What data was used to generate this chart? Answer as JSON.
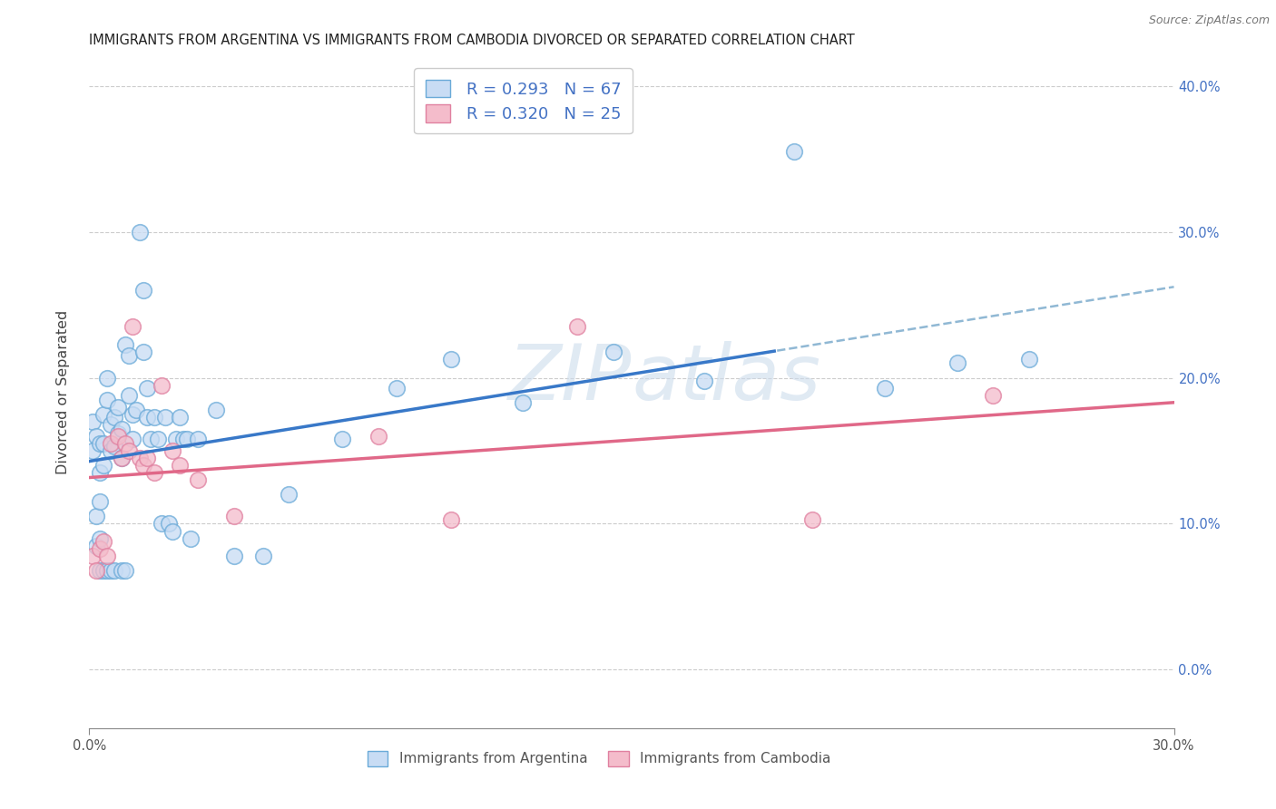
{
  "title": "IMMIGRANTS FROM ARGENTINA VS IMMIGRANTS FROM CAMBODIA DIVORCED OR SEPARATED CORRELATION CHART",
  "source": "Source: ZipAtlas.com",
  "ylabel": "Divorced or Separated",
  "legend_argentina": "Immigrants from Argentina",
  "legend_cambodia": "Immigrants from Cambodia",
  "R_argentina": 0.293,
  "N_argentina": 67,
  "R_cambodia": 0.32,
  "N_cambodia": 25,
  "argentina_face_color": "#c8dcf4",
  "cambodia_face_color": "#f4bccb",
  "argentina_edge_color": "#6aaad8",
  "cambodia_edge_color": "#e080a0",
  "argentina_line_color": "#3878c8",
  "cambodia_line_color": "#e06888",
  "dashed_line_color": "#90b8d4",
  "watermark_color": "#ccdcec",
  "xmin": 0.0,
  "xmax": 0.3,
  "ymin": -0.04,
  "ymax": 0.42,
  "x_tick_positions": [
    0.0,
    0.3
  ],
  "x_tick_labels": [
    "0.0%",
    "30.0%"
  ],
  "y_tick_positions": [
    0.0,
    0.1,
    0.2,
    0.3,
    0.4
  ],
  "y_tick_labels": [
    "0.0%",
    "10.0%",
    "20.0%",
    "30.0%",
    "40.0%"
  ],
  "argentina_x": [
    0.001,
    0.001,
    0.002,
    0.002,
    0.002,
    0.003,
    0.003,
    0.003,
    0.003,
    0.003,
    0.004,
    0.004,
    0.004,
    0.004,
    0.005,
    0.005,
    0.005,
    0.006,
    0.006,
    0.006,
    0.007,
    0.007,
    0.007,
    0.008,
    0.008,
    0.009,
    0.009,
    0.009,
    0.01,
    0.01,
    0.011,
    0.011,
    0.012,
    0.012,
    0.013,
    0.014,
    0.015,
    0.015,
    0.016,
    0.016,
    0.017,
    0.018,
    0.019,
    0.02,
    0.021,
    0.022,
    0.023,
    0.024,
    0.025,
    0.026,
    0.027,
    0.028,
    0.03,
    0.035,
    0.04,
    0.048,
    0.055,
    0.07,
    0.085,
    0.1,
    0.12,
    0.145,
    0.17,
    0.195,
    0.22,
    0.24,
    0.26
  ],
  "argentina_y": [
    0.15,
    0.17,
    0.16,
    0.105,
    0.085,
    0.155,
    0.135,
    0.115,
    0.09,
    0.068,
    0.175,
    0.155,
    0.14,
    0.068,
    0.2,
    0.185,
    0.068,
    0.168,
    0.15,
    0.068,
    0.173,
    0.153,
    0.068,
    0.18,
    0.162,
    0.165,
    0.145,
    0.068,
    0.223,
    0.068,
    0.215,
    0.188,
    0.175,
    0.158,
    0.178,
    0.3,
    0.26,
    0.218,
    0.193,
    0.173,
    0.158,
    0.173,
    0.158,
    0.1,
    0.173,
    0.1,
    0.095,
    0.158,
    0.173,
    0.158,
    0.158,
    0.09,
    0.158,
    0.178,
    0.078,
    0.078,
    0.12,
    0.158,
    0.193,
    0.213,
    0.183,
    0.218,
    0.198,
    0.355,
    0.193,
    0.21,
    0.213
  ],
  "cambodia_x": [
    0.001,
    0.002,
    0.003,
    0.004,
    0.005,
    0.006,
    0.008,
    0.009,
    0.01,
    0.011,
    0.012,
    0.014,
    0.015,
    0.016,
    0.018,
    0.02,
    0.023,
    0.025,
    0.03,
    0.04,
    0.08,
    0.1,
    0.135,
    0.2,
    0.25
  ],
  "cambodia_y": [
    0.078,
    0.068,
    0.083,
    0.088,
    0.078,
    0.155,
    0.16,
    0.145,
    0.155,
    0.15,
    0.235,
    0.145,
    0.14,
    0.145,
    0.135,
    0.195,
    0.15,
    0.14,
    0.13,
    0.105,
    0.16,
    0.103,
    0.235,
    0.103,
    0.188
  ],
  "solid_line_end": 0.19,
  "dashed_line_start": 0.19
}
